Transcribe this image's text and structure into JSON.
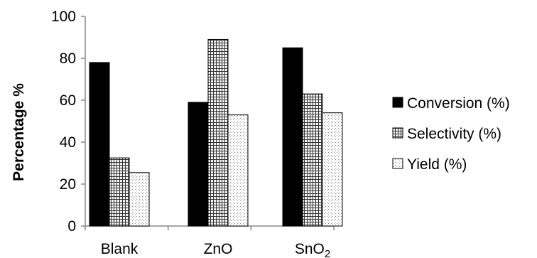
{
  "chart_data": {
    "type": "bar",
    "title": "",
    "xlabel": "",
    "ylabel": "Percentage %",
    "ylim": [
      0,
      100
    ],
    "yticks": [
      0,
      20,
      40,
      60,
      80,
      100
    ],
    "categories": [
      "Blank",
      "ZnO",
      "SnO2"
    ],
    "category_display": [
      {
        "base": "Blank",
        "sub": ""
      },
      {
        "base": "ZnO",
        "sub": ""
      },
      {
        "base": "SnO",
        "sub": "2"
      }
    ],
    "series": [
      {
        "name": "Conversion (%)",
        "values": [
          78,
          59,
          85
        ],
        "fill": "solid",
        "color": "#000000"
      },
      {
        "name": "Selectivity (%)",
        "values": [
          32.5,
          89,
          63
        ],
        "fill": "grid",
        "color": "#444444"
      },
      {
        "name": "Yield (%)",
        "values": [
          25.5,
          53,
          54
        ],
        "fill": "dots",
        "color": "#888888"
      }
    ],
    "legend_position": "right",
    "grid": false
  }
}
